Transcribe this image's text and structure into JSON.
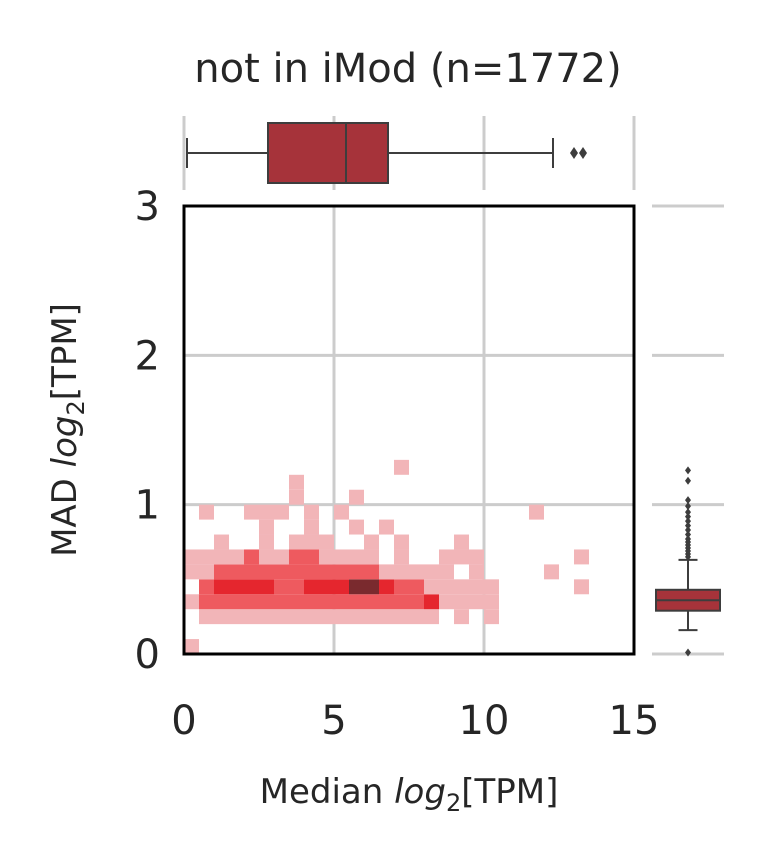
{
  "colors": {
    "box_fill": "#a6333a",
    "heat_low": "#f2b5b8",
    "heat_mid": "#ee5a5f",
    "heat_high": "#e5262e",
    "heat_peak": "#7a2a2e",
    "grid": "#cccccc"
  },
  "chart_data": {
    "type": "heatmap",
    "title": "not in iMod (n=1772)",
    "xlabel_prefix": "Median ",
    "xlabel_math": "log",
    "xlabel_sub": "2",
    "xlabel_suffix": "[TPM]",
    "ylabel_prefix": "MAD ",
    "ylabel_math": "log",
    "ylabel_sub": "2",
    "ylabel_suffix": "[TPM]",
    "xlim": [
      0,
      15
    ],
    "ylim": [
      0,
      3
    ],
    "xticks": [
      0,
      5,
      10,
      15
    ],
    "xtick_labels": [
      "0",
      "5",
      "10",
      "15"
    ],
    "yticks": [
      0,
      1,
      2,
      3
    ],
    "ytick_labels": [
      "0",
      "1",
      "2",
      "3"
    ],
    "grid": true,
    "bin_size": [
      0.5,
      0.1
    ],
    "bins": [
      {
        "x": 0.0,
        "y": 0.0,
        "level": 1
      },
      {
        "x": 0.5,
        "y": 0.2,
        "level": 1
      },
      {
        "x": 1.0,
        "y": 0.2,
        "level": 1
      },
      {
        "x": 1.5,
        "y": 0.2,
        "level": 1
      },
      {
        "x": 2.0,
        "y": 0.2,
        "level": 1
      },
      {
        "x": 2.5,
        "y": 0.2,
        "level": 1
      },
      {
        "x": 3.0,
        "y": 0.2,
        "level": 1
      },
      {
        "x": 3.5,
        "y": 0.2,
        "level": 1
      },
      {
        "x": 4.0,
        "y": 0.2,
        "level": 1
      },
      {
        "x": 4.5,
        "y": 0.2,
        "level": 1
      },
      {
        "x": 5.0,
        "y": 0.2,
        "level": 1
      },
      {
        "x": 5.5,
        "y": 0.2,
        "level": 1
      },
      {
        "x": 6.0,
        "y": 0.2,
        "level": 1
      },
      {
        "x": 6.5,
        "y": 0.2,
        "level": 1
      },
      {
        "x": 7.0,
        "y": 0.2,
        "level": 1
      },
      {
        "x": 7.5,
        "y": 0.2,
        "level": 1
      },
      {
        "x": 8.0,
        "y": 0.2,
        "level": 1
      },
      {
        "x": 9.0,
        "y": 0.2,
        "level": 1
      },
      {
        "x": 10.0,
        "y": 0.2,
        "level": 1
      },
      {
        "x": 0.0,
        "y": 0.3,
        "level": 1
      },
      {
        "x": 0.5,
        "y": 0.3,
        "level": 2
      },
      {
        "x": 1.0,
        "y": 0.3,
        "level": 2
      },
      {
        "x": 1.5,
        "y": 0.3,
        "level": 2
      },
      {
        "x": 2.0,
        "y": 0.3,
        "level": 2
      },
      {
        "x": 2.5,
        "y": 0.3,
        "level": 2
      },
      {
        "x": 3.0,
        "y": 0.3,
        "level": 2
      },
      {
        "x": 3.5,
        "y": 0.3,
        "level": 2
      },
      {
        "x": 4.0,
        "y": 0.3,
        "level": 2
      },
      {
        "x": 4.5,
        "y": 0.3,
        "level": 2
      },
      {
        "x": 5.0,
        "y": 0.3,
        "level": 2
      },
      {
        "x": 5.5,
        "y": 0.3,
        "level": 2
      },
      {
        "x": 6.0,
        "y": 0.3,
        "level": 2
      },
      {
        "x": 6.5,
        "y": 0.3,
        "level": 2
      },
      {
        "x": 7.0,
        "y": 0.3,
        "level": 2
      },
      {
        "x": 7.5,
        "y": 0.3,
        "level": 2
      },
      {
        "x": 8.0,
        "y": 0.3,
        "level": 3
      },
      {
        "x": 8.5,
        "y": 0.3,
        "level": 1
      },
      {
        "x": 9.0,
        "y": 0.3,
        "level": 1
      },
      {
        "x": 9.5,
        "y": 0.3,
        "level": 1
      },
      {
        "x": 10.0,
        "y": 0.3,
        "level": 1
      },
      {
        "x": 0.5,
        "y": 0.4,
        "level": 2
      },
      {
        "x": 1.0,
        "y": 0.4,
        "level": 3
      },
      {
        "x": 1.5,
        "y": 0.4,
        "level": 3
      },
      {
        "x": 2.0,
        "y": 0.4,
        "level": 3
      },
      {
        "x": 2.5,
        "y": 0.4,
        "level": 3
      },
      {
        "x": 3.0,
        "y": 0.4,
        "level": 2
      },
      {
        "x": 3.5,
        "y": 0.4,
        "level": 2
      },
      {
        "x": 4.0,
        "y": 0.4,
        "level": 3
      },
      {
        "x": 4.5,
        "y": 0.4,
        "level": 3
      },
      {
        "x": 5.0,
        "y": 0.4,
        "level": 3
      },
      {
        "x": 5.5,
        "y": 0.4,
        "level": 4
      },
      {
        "x": 6.0,
        "y": 0.4,
        "level": 4
      },
      {
        "x": 6.5,
        "y": 0.4,
        "level": 3
      },
      {
        "x": 7.0,
        "y": 0.4,
        "level": 2
      },
      {
        "x": 7.5,
        "y": 0.4,
        "level": 2
      },
      {
        "x": 8.0,
        "y": 0.4,
        "level": 1
      },
      {
        "x": 8.5,
        "y": 0.4,
        "level": 1
      },
      {
        "x": 9.0,
        "y": 0.4,
        "level": 1
      },
      {
        "x": 9.5,
        "y": 0.4,
        "level": 1
      },
      {
        "x": 10.0,
        "y": 0.4,
        "level": 1
      },
      {
        "x": 13.0,
        "y": 0.4,
        "level": 1
      },
      {
        "x": 0.0,
        "y": 0.5,
        "level": 1
      },
      {
        "x": 0.5,
        "y": 0.5,
        "level": 1
      },
      {
        "x": 1.0,
        "y": 0.5,
        "level": 2
      },
      {
        "x": 1.5,
        "y": 0.5,
        "level": 2
      },
      {
        "x": 2.0,
        "y": 0.5,
        "level": 2
      },
      {
        "x": 2.5,
        "y": 0.5,
        "level": 2
      },
      {
        "x": 3.0,
        "y": 0.5,
        "level": 2
      },
      {
        "x": 3.5,
        "y": 0.5,
        "level": 2
      },
      {
        "x": 4.0,
        "y": 0.5,
        "level": 2
      },
      {
        "x": 4.5,
        "y": 0.5,
        "level": 2
      },
      {
        "x": 5.0,
        "y": 0.5,
        "level": 2
      },
      {
        "x": 5.5,
        "y": 0.5,
        "level": 2
      },
      {
        "x": 6.0,
        "y": 0.5,
        "level": 2
      },
      {
        "x": 6.5,
        "y": 0.5,
        "level": 1
      },
      {
        "x": 7.0,
        "y": 0.5,
        "level": 1
      },
      {
        "x": 7.5,
        "y": 0.5,
        "level": 1
      },
      {
        "x": 8.0,
        "y": 0.5,
        "level": 1
      },
      {
        "x": 8.5,
        "y": 0.5,
        "level": 1
      },
      {
        "x": 9.5,
        "y": 0.5,
        "level": 1
      },
      {
        "x": 12.0,
        "y": 0.5,
        "level": 1
      },
      {
        "x": 0.0,
        "y": 0.6,
        "level": 1
      },
      {
        "x": 0.5,
        "y": 0.6,
        "level": 1
      },
      {
        "x": 1.0,
        "y": 0.6,
        "level": 1
      },
      {
        "x": 1.5,
        "y": 0.6,
        "level": 1
      },
      {
        "x": 2.0,
        "y": 0.6,
        "level": 2
      },
      {
        "x": 2.5,
        "y": 0.6,
        "level": 1
      },
      {
        "x": 3.0,
        "y": 0.6,
        "level": 1
      },
      {
        "x": 3.5,
        "y": 0.6,
        "level": 2
      },
      {
        "x": 4.0,
        "y": 0.6,
        "level": 2
      },
      {
        "x": 4.5,
        "y": 0.6,
        "level": 1
      },
      {
        "x": 5.0,
        "y": 0.6,
        "level": 1
      },
      {
        "x": 5.5,
        "y": 0.6,
        "level": 1
      },
      {
        "x": 6.0,
        "y": 0.6,
        "level": 1
      },
      {
        "x": 7.0,
        "y": 0.6,
        "level": 1
      },
      {
        "x": 8.5,
        "y": 0.6,
        "level": 1
      },
      {
        "x": 9.0,
        "y": 0.6,
        "level": 1
      },
      {
        "x": 9.5,
        "y": 0.6,
        "level": 1
      },
      {
        "x": 13.0,
        "y": 0.6,
        "level": 1
      },
      {
        "x": 1.0,
        "y": 0.7,
        "level": 1
      },
      {
        "x": 2.5,
        "y": 0.7,
        "level": 1
      },
      {
        "x": 3.5,
        "y": 0.7,
        "level": 1
      },
      {
        "x": 4.0,
        "y": 0.7,
        "level": 1
      },
      {
        "x": 4.5,
        "y": 0.7,
        "level": 1
      },
      {
        "x": 6.0,
        "y": 0.7,
        "level": 1
      },
      {
        "x": 7.0,
        "y": 0.7,
        "level": 1
      },
      {
        "x": 9.0,
        "y": 0.7,
        "level": 1
      },
      {
        "x": 2.5,
        "y": 0.8,
        "level": 1
      },
      {
        "x": 4.0,
        "y": 0.8,
        "level": 1
      },
      {
        "x": 5.5,
        "y": 0.8,
        "level": 1
      },
      {
        "x": 6.5,
        "y": 0.8,
        "level": 1
      },
      {
        "x": 0.5,
        "y": 0.9,
        "level": 1
      },
      {
        "x": 2.0,
        "y": 0.9,
        "level": 1
      },
      {
        "x": 2.5,
        "y": 0.9,
        "level": 1
      },
      {
        "x": 3.0,
        "y": 0.9,
        "level": 1
      },
      {
        "x": 4.0,
        "y": 0.9,
        "level": 1
      },
      {
        "x": 5.0,
        "y": 0.9,
        "level": 1
      },
      {
        "x": 11.5,
        "y": 0.9,
        "level": 1
      },
      {
        "x": 3.5,
        "y": 1.0,
        "level": 1
      },
      {
        "x": 5.5,
        "y": 1.0,
        "level": 1
      },
      {
        "x": 3.5,
        "y": 1.1,
        "level": 1
      },
      {
        "x": 7.0,
        "y": 1.2,
        "level": 1
      }
    ],
    "top_boxplot": {
      "variable": "Median",
      "whisker_low": 0.1,
      "q1": 2.8,
      "median": 5.4,
      "q3": 6.8,
      "whisker_high": 12.3,
      "outliers": [
        13.0,
        13.3
      ]
    },
    "right_boxplot": {
      "variable": "MAD",
      "whisker_low": 0.16,
      "q1": 0.29,
      "median": 0.36,
      "q3": 0.43,
      "whisker_high": 0.63,
      "outliers": [
        0.01,
        0.65,
        0.67,
        0.69,
        0.71,
        0.73,
        0.75,
        0.77,
        0.8,
        0.83,
        0.86,
        0.89,
        0.92,
        0.95,
        0.99,
        1.03,
        1.16,
        1.23
      ]
    }
  }
}
